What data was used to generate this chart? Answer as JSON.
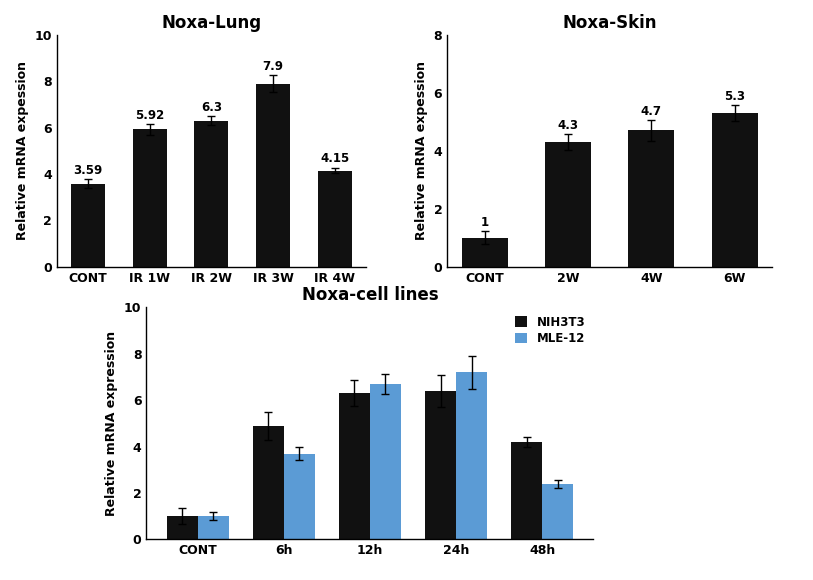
{
  "lung": {
    "title": "Noxa-Lung",
    "categories": [
      "CONT",
      "IR 1W",
      "IR 2W",
      "IR 3W",
      "IR 4W"
    ],
    "values": [
      3.59,
      5.92,
      6.3,
      7.9,
      4.15
    ],
    "errors": [
      0.18,
      0.22,
      0.18,
      0.35,
      0.12
    ],
    "ylim": [
      0,
      10
    ],
    "yticks": [
      0,
      2,
      4,
      6,
      8,
      10
    ],
    "ylabel": "Relative mRNA expession"
  },
  "skin": {
    "title": "Noxa-Skin",
    "categories": [
      "CONT",
      "2W",
      "4W",
      "6W"
    ],
    "values": [
      1.0,
      4.3,
      4.7,
      5.3
    ],
    "errors": [
      0.22,
      0.28,
      0.35,
      0.28
    ],
    "annot_labels": [
      "1",
      "4.3",
      "4.7",
      "5.3"
    ],
    "ylim": [
      0,
      8
    ],
    "yticks": [
      0,
      2,
      4,
      6,
      8
    ],
    "ylabel": "Relative mRNA expession"
  },
  "cell": {
    "title": "Noxa-cell lines",
    "categories": [
      "CONT",
      "6h",
      "12h",
      "24h",
      "48h"
    ],
    "values_nih": [
      1.0,
      4.9,
      6.3,
      6.4,
      4.2
    ],
    "values_mle": [
      1.0,
      3.7,
      6.7,
      7.2,
      2.4
    ],
    "errors_nih": [
      0.35,
      0.6,
      0.55,
      0.7,
      0.2
    ],
    "errors_mle": [
      0.18,
      0.28,
      0.45,
      0.7,
      0.18
    ],
    "ylim": [
      0,
      10
    ],
    "yticks": [
      0,
      2,
      4,
      6,
      8,
      10
    ],
    "ylabel": "Relative mRNA expression",
    "legend_nih": "NIH3T3",
    "legend_mle": "MLE-12",
    "color_nih": "#111111",
    "color_mle": "#5b9bd5"
  },
  "bar_color": "#111111",
  "title_fontsize": 12,
  "label_fontsize": 9,
  "tick_fontsize": 9,
  "annot_fontsize": 8.5
}
